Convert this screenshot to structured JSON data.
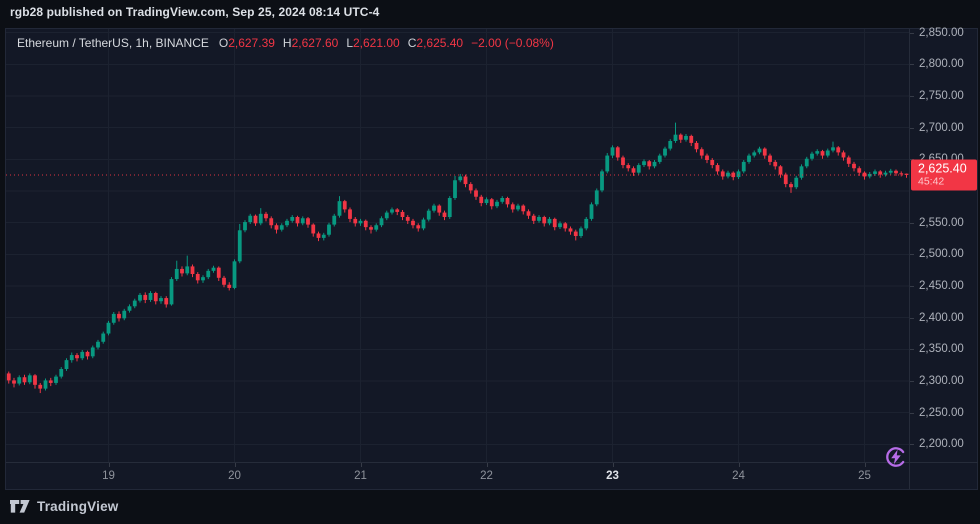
{
  "header": {
    "text": "rgb28 published on TradingView.com, Sep 25, 2024 08:14 UTC-4"
  },
  "legend": {
    "symbol": "Ethereum / TetherUS, 1h, BINANCE",
    "o_label": "O",
    "o_value": "2,627.39",
    "h_label": "H",
    "h_value": "2,627.60",
    "l_label": "L",
    "l_value": "2,621.00",
    "c_label": "C",
    "c_value": "2,625.40",
    "change": "−2.00 (−0.08%)"
  },
  "price_badge": {
    "price": "2,625.40",
    "countdown": "45:42"
  },
  "price_axis": {
    "labels": [
      {
        "v": 2850,
        "t": "2,850.00"
      },
      {
        "v": 2800,
        "t": "2,800.00"
      },
      {
        "v": 2750,
        "t": "2,750.00"
      },
      {
        "v": 2700,
        "t": "2,700.00"
      },
      {
        "v": 2650,
        "t": "2,650.00"
      },
      {
        "v": 2550,
        "t": "2,550.00"
      },
      {
        "v": 2500,
        "t": "2,500.00"
      },
      {
        "v": 2450,
        "t": "2,450.00"
      },
      {
        "v": 2400,
        "t": "2,400.00"
      },
      {
        "v": 2350,
        "t": "2,350.00"
      },
      {
        "v": 2300,
        "t": "2,300.00"
      },
      {
        "v": 2250,
        "t": "2,250.00"
      },
      {
        "v": 2200,
        "t": "2,200.00"
      }
    ]
  },
  "footer": {
    "logo_text": "TradingView"
  },
  "icons": {
    "boost": "lightning-circle-icon",
    "logo": "tradingview-logo-icon"
  },
  "colors": {
    "up": "#089981",
    "down": "#f23645",
    "badge_bg": "#f23645",
    "price_line": "#f23645",
    "boost_purple": "#b76ce8",
    "grid": "#1c2230"
  },
  "chart_data": {
    "type": "candlestick",
    "title": "Ethereum / TetherUS, 1h, BINANCE",
    "symbol": "Ethereum / TetherUS",
    "interval": "1h",
    "exchange": "BINANCE",
    "ohlc_display": {
      "open": 2627.39,
      "high": 2627.6,
      "low": 2621.0,
      "close": 2625.4,
      "change": -2.0,
      "change_pct": -0.08
    },
    "last_price": 2625.4,
    "countdown": "45:42",
    "y_axis": {
      "min": 2200,
      "max": 2850,
      "step": 50,
      "hidden_label": 2600
    },
    "x_axis": {
      "day_ticks": [
        {
          "index": 20,
          "label": "19",
          "bold": false
        },
        {
          "index": 44,
          "label": "20",
          "bold": false
        },
        {
          "index": 68,
          "label": "21",
          "bold": false
        },
        {
          "index": 92,
          "label": "22",
          "bold": false
        },
        {
          "index": 116,
          "label": "23",
          "bold": true
        },
        {
          "index": 140,
          "label": "24",
          "bold": false
        },
        {
          "index": 164,
          "label": "25",
          "bold": false
        }
      ]
    },
    "candles": [
      [
        2316,
        2320,
        2308,
        2312
      ],
      [
        2312,
        2315,
        2296,
        2301
      ],
      [
        2301,
        2305,
        2290,
        2296
      ],
      [
        2296,
        2309,
        2293,
        2306
      ],
      [
        2306,
        2310,
        2294,
        2298
      ],
      [
        2298,
        2312,
        2295,
        2309
      ],
      [
        2309,
        2311,
        2288,
        2294
      ],
      [
        2294,
        2297,
        2281,
        2288
      ],
      [
        2288,
        2304,
        2285,
        2301
      ],
      [
        2301,
        2305,
        2292,
        2297
      ],
      [
        2297,
        2310,
        2294,
        2307
      ],
      [
        2307,
        2322,
        2304,
        2319
      ],
      [
        2319,
        2336,
        2316,
        2333
      ],
      [
        2333,
        2345,
        2329,
        2341
      ],
      [
        2341,
        2344,
        2331,
        2336
      ],
      [
        2336,
        2349,
        2333,
        2346
      ],
      [
        2346,
        2348,
        2334,
        2339
      ],
      [
        2339,
        2356,
        2336,
        2353
      ],
      [
        2353,
        2365,
        2350,
        2362
      ],
      [
        2362,
        2378,
        2359,
        2375
      ],
      [
        2375,
        2395,
        2372,
        2392
      ],
      [
        2392,
        2409,
        2389,
        2406
      ],
      [
        2406,
        2410,
        2394,
        2399
      ],
      [
        2399,
        2414,
        2396,
        2411
      ],
      [
        2411,
        2421,
        2408,
        2418
      ],
      [
        2418,
        2430,
        2415,
        2427
      ],
      [
        2427,
        2439,
        2424,
        2436
      ],
      [
        2436,
        2440,
        2423,
        2428
      ],
      [
        2428,
        2442,
        2425,
        2439
      ],
      [
        2439,
        2441,
        2421,
        2426
      ],
      [
        2426,
        2434,
        2422,
        2431
      ],
      [
        2431,
        2434,
        2416,
        2421
      ],
      [
        2421,
        2464,
        2419,
        2461
      ],
      [
        2461,
        2490,
        2458,
        2477
      ],
      [
        2477,
        2481,
        2465,
        2470
      ],
      [
        2470,
        2498,
        2467,
        2481
      ],
      [
        2481,
        2484,
        2464,
        2469
      ],
      [
        2469,
        2472,
        2454,
        2459
      ],
      [
        2459,
        2467,
        2455,
        2464
      ],
      [
        2464,
        2477,
        2461,
        2474
      ],
      [
        2474,
        2482,
        2471,
        2479
      ],
      [
        2479,
        2481,
        2458,
        2463
      ],
      [
        2463,
        2466,
        2448,
        2452
      ],
      [
        2452,
        2456,
        2443,
        2447
      ],
      [
        2447,
        2492,
        2445,
        2489
      ],
      [
        2489,
        2548,
        2486,
        2538
      ],
      [
        2538,
        2554,
        2535,
        2551
      ],
      [
        2551,
        2564,
        2548,
        2561
      ],
      [
        2561,
        2563,
        2545,
        2549
      ],
      [
        2549,
        2573,
        2546,
        2564
      ],
      [
        2564,
        2567,
        2552,
        2557
      ],
      [
        2557,
        2560,
        2541,
        2546
      ],
      [
        2546,
        2549,
        2533,
        2539
      ],
      [
        2539,
        2549,
        2536,
        2546
      ],
      [
        2546,
        2556,
        2543,
        2553
      ],
      [
        2553,
        2562,
        2550,
        2559
      ],
      [
        2559,
        2561,
        2544,
        2549
      ],
      [
        2549,
        2560,
        2546,
        2557
      ],
      [
        2557,
        2559,
        2542,
        2547
      ],
      [
        2547,
        2549,
        2528,
        2533
      ],
      [
        2533,
        2536,
        2521,
        2526
      ],
      [
        2526,
        2534,
        2522,
        2531
      ],
      [
        2531,
        2550,
        2528,
        2547
      ],
      [
        2547,
        2564,
        2544,
        2561
      ],
      [
        2561,
        2592,
        2558,
        2584
      ],
      [
        2584,
        2586,
        2566,
        2571
      ],
      [
        2571,
        2574,
        2551,
        2556
      ],
      [
        2556,
        2559,
        2544,
        2549
      ],
      [
        2549,
        2556,
        2545,
        2553
      ],
      [
        2553,
        2555,
        2538,
        2543
      ],
      [
        2543,
        2546,
        2533,
        2539
      ],
      [
        2539,
        2549,
        2536,
        2546
      ],
      [
        2546,
        2560,
        2543,
        2557
      ],
      [
        2557,
        2569,
        2554,
        2566
      ],
      [
        2566,
        2574,
        2563,
        2571
      ],
      [
        2571,
        2573,
        2562,
        2567
      ],
      [
        2567,
        2570,
        2554,
        2559
      ],
      [
        2559,
        2562,
        2548,
        2553
      ],
      [
        2553,
        2556,
        2541,
        2546
      ],
      [
        2546,
        2549,
        2536,
        2541
      ],
      [
        2541,
        2558,
        2538,
        2555
      ],
      [
        2555,
        2572,
        2552,
        2569
      ],
      [
        2569,
        2580,
        2566,
        2577
      ],
      [
        2577,
        2579,
        2561,
        2566
      ],
      [
        2566,
        2569,
        2554,
        2559
      ],
      [
        2559,
        2592,
        2556,
        2589
      ],
      [
        2589,
        2624,
        2586,
        2617
      ],
      [
        2617,
        2627,
        2614,
        2623
      ],
      [
        2623,
        2626,
        2606,
        2611
      ],
      [
        2611,
        2614,
        2596,
        2601
      ],
      [
        2601,
        2604,
        2586,
        2591
      ],
      [
        2591,
        2594,
        2576,
        2581
      ],
      [
        2581,
        2590,
        2578,
        2587
      ],
      [
        2587,
        2589,
        2571,
        2576
      ],
      [
        2576,
        2586,
        2573,
        2583
      ],
      [
        2583,
        2592,
        2580,
        2589
      ],
      [
        2589,
        2591,
        2574,
        2579
      ],
      [
        2579,
        2582,
        2566,
        2571
      ],
      [
        2571,
        2580,
        2568,
        2577
      ],
      [
        2577,
        2579,
        2563,
        2568
      ],
      [
        2568,
        2571,
        2556,
        2561
      ],
      [
        2561,
        2564,
        2548,
        2553
      ],
      [
        2553,
        2562,
        2550,
        2559
      ],
      [
        2559,
        2561,
        2544,
        2549
      ],
      [
        2549,
        2559,
        2546,
        2556
      ],
      [
        2556,
        2558,
        2538,
        2543
      ],
      [
        2543,
        2552,
        2540,
        2549
      ],
      [
        2549,
        2551,
        2536,
        2541
      ],
      [
        2541,
        2544,
        2531,
        2536
      ],
      [
        2536,
        2539,
        2522,
        2529
      ],
      [
        2529,
        2544,
        2526,
        2541
      ],
      [
        2541,
        2559,
        2538,
        2556
      ],
      [
        2556,
        2582,
        2553,
        2579
      ],
      [
        2579,
        2604,
        2576,
        2601
      ],
      [
        2601,
        2634,
        2598,
        2631
      ],
      [
        2631,
        2660,
        2628,
        2656
      ],
      [
        2656,
        2672,
        2652,
        2669
      ],
      [
        2669,
        2671,
        2648,
        2653
      ],
      [
        2653,
        2656,
        2636,
        2641
      ],
      [
        2641,
        2644,
        2631,
        2636
      ],
      [
        2636,
        2639,
        2624,
        2629
      ],
      [
        2629,
        2644,
        2626,
        2641
      ],
      [
        2641,
        2650,
        2638,
        2647
      ],
      [
        2647,
        2649,
        2634,
        2639
      ],
      [
        2639,
        2649,
        2636,
        2646
      ],
      [
        2646,
        2659,
        2643,
        2656
      ],
      [
        2656,
        2670,
        2653,
        2667
      ],
      [
        2667,
        2682,
        2664,
        2679
      ],
      [
        2679,
        2708,
        2676,
        2689
      ],
      [
        2689,
        2691,
        2676,
        2681
      ],
      [
        2681,
        2690,
        2678,
        2687
      ],
      [
        2687,
        2689,
        2671,
        2676
      ],
      [
        2676,
        2679,
        2661,
        2666
      ],
      [
        2666,
        2669,
        2651,
        2656
      ],
      [
        2656,
        2659,
        2644,
        2649
      ],
      [
        2649,
        2652,
        2636,
        2641
      ],
      [
        2641,
        2644,
        2626,
        2631
      ],
      [
        2631,
        2634,
        2618,
        2623
      ],
      [
        2623,
        2632,
        2620,
        2629
      ],
      [
        2629,
        2631,
        2617,
        2622
      ],
      [
        2622,
        2634,
        2619,
        2631
      ],
      [
        2631,
        2649,
        2628,
        2646
      ],
      [
        2646,
        2659,
        2643,
        2656
      ],
      [
        2656,
        2664,
        2653,
        2661
      ],
      [
        2661,
        2670,
        2658,
        2667
      ],
      [
        2667,
        2669,
        2651,
        2656
      ],
      [
        2656,
        2659,
        2641,
        2646
      ],
      [
        2646,
        2649,
        2634,
        2639
      ],
      [
        2639,
        2641,
        2621,
        2626
      ],
      [
        2626,
        2629,
        2606,
        2611
      ],
      [
        2611,
        2614,
        2597,
        2606
      ],
      [
        2606,
        2624,
        2603,
        2621
      ],
      [
        2621,
        2642,
        2618,
        2639
      ],
      [
        2639,
        2654,
        2636,
        2651
      ],
      [
        2651,
        2662,
        2648,
        2659
      ],
      [
        2659,
        2666,
        2656,
        2663
      ],
      [
        2663,
        2665,
        2651,
        2656
      ],
      [
        2656,
        2667,
        2653,
        2664
      ],
      [
        2664,
        2678,
        2661,
        2669
      ],
      [
        2669,
        2671,
        2656,
        2661
      ],
      [
        2661,
        2664,
        2648,
        2653
      ],
      [
        2653,
        2656,
        2638,
        2643
      ],
      [
        2643,
        2646,
        2631,
        2636
      ],
      [
        2636,
        2639,
        2624,
        2629
      ],
      [
        2629,
        2631,
        2618,
        2623
      ],
      [
        2623,
        2630,
        2620,
        2627
      ],
      [
        2627,
        2634,
        2624,
        2631
      ],
      [
        2631,
        2633,
        2621,
        2626
      ],
      [
        2626,
        2632,
        2623,
        2629
      ],
      [
        2629,
        2635,
        2626,
        2632
      ],
      [
        2632,
        2634,
        2624,
        2628
      ],
      [
        2628,
        2631,
        2623,
        2627
      ],
      [
        2627.39,
        2627.6,
        2621,
        2625.4
      ]
    ]
  }
}
